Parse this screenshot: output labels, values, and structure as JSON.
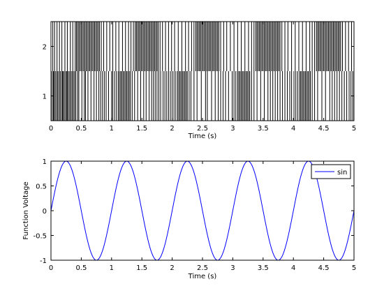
{
  "chart_data": [
    {
      "type": "raster",
      "xlabel": "Time (s)",
      "ylabel": "",
      "xlim": [
        0,
        5
      ],
      "ylim": [
        0.5,
        2.5
      ],
      "xticks": [
        "0",
        "0.5",
        "1",
        "1.5",
        "2",
        "2.5",
        "3",
        "3.5",
        "4",
        "4.5",
        "5"
      ],
      "yticks": [
        "1",
        "2"
      ],
      "rows": [
        1,
        2
      ],
      "line_color": "#000000",
      "events": {
        "1": [
          0.02,
          0.04,
          0.05,
          0.07,
          0.09,
          0.11,
          0.13,
          0.15,
          0.17,
          0.19,
          0.2,
          0.22,
          0.24,
          0.26,
          0.27,
          0.29,
          0.31,
          0.33,
          0.35,
          0.37,
          0.39,
          0.41,
          0.44,
          0.46,
          0.51,
          0.55,
          0.57,
          0.61,
          0.66,
          0.71,
          0.75,
          0.79,
          0.82,
          0.85,
          0.88,
          0.91,
          0.95,
          1.0,
          1.02,
          1.05,
          1.08,
          1.11,
          1.13,
          1.15,
          1.17,
          1.19,
          1.21,
          1.23,
          1.25,
          1.27,
          1.29,
          1.31,
          1.34,
          1.38,
          1.43,
          1.48,
          1.53,
          1.57,
          1.62,
          1.66,
          1.69,
          1.72,
          1.75,
          1.78,
          1.81,
          1.85,
          1.88,
          1.91,
          1.94,
          1.97,
          2.0,
          2.03,
          2.06,
          2.09,
          2.11,
          2.13,
          2.15,
          2.17,
          2.19,
          2.21,
          2.23,
          2.25,
          2.28,
          2.31,
          2.36,
          2.41,
          2.48,
          2.55,
          2.58,
          2.65,
          2.71,
          2.76,
          2.8,
          2.84,
          2.88,
          2.93,
          2.99,
          3.02,
          3.05,
          3.08,
          3.1,
          3.12,
          3.14,
          3.16,
          3.18,
          3.2,
          3.22,
          3.24,
          3.26,
          3.28,
          3.31,
          3.35,
          3.4,
          3.46,
          3.52,
          3.58,
          3.62,
          3.66,
          3.7,
          3.74,
          3.78,
          3.82,
          3.86,
          3.9,
          3.94,
          3.97,
          4.01,
          4.04,
          4.07,
          4.1,
          4.12,
          4.14,
          4.16,
          4.18,
          4.2,
          4.22,
          4.24,
          4.26,
          4.28,
          4.31,
          4.35,
          4.4,
          4.47,
          4.53,
          4.6,
          4.64,
          4.68,
          4.72,
          4.76,
          4.8,
          4.84,
          4.88,
          4.92,
          4.95,
          4.98
        ],
        "2": [
          0.03,
          0.06,
          0.1,
          0.14,
          0.18,
          0.23,
          0.27,
          0.32,
          0.36,
          0.4,
          0.42,
          0.44,
          0.46,
          0.48,
          0.5,
          0.52,
          0.54,
          0.56,
          0.58,
          0.6,
          0.62,
          0.64,
          0.66,
          0.68,
          0.7,
          0.72,
          0.74,
          0.76,
          0.78,
          0.8,
          0.83,
          0.87,
          0.92,
          0.97,
          1.02,
          1.07,
          1.12,
          1.18,
          1.23,
          1.28,
          1.32,
          1.36,
          1.39,
          1.41,
          1.43,
          1.45,
          1.47,
          1.49,
          1.51,
          1.53,
          1.55,
          1.57,
          1.59,
          1.61,
          1.63,
          1.65,
          1.67,
          1.69,
          1.71,
          1.73,
          1.75,
          1.77,
          1.8,
          1.84,
          1.89,
          1.94,
          1.99,
          2.04,
          2.1,
          2.16,
          2.22,
          2.27,
          2.32,
          2.36,
          2.39,
          2.41,
          2.43,
          2.45,
          2.47,
          2.49,
          2.51,
          2.53,
          2.55,
          2.57,
          2.59,
          2.61,
          2.63,
          2.65,
          2.67,
          2.69,
          2.71,
          2.73,
          2.75,
          2.77,
          2.8,
          2.85,
          2.9,
          2.96,
          3.02,
          3.08,
          3.14,
          3.2,
          3.26,
          3.31,
          3.35,
          3.38,
          3.4,
          3.42,
          3.44,
          3.46,
          3.48,
          3.5,
          3.52,
          3.54,
          3.56,
          3.58,
          3.6,
          3.62,
          3.64,
          3.66,
          3.68,
          3.7,
          3.72,
          3.74,
          3.76,
          3.78,
          3.81,
          3.86,
          3.91,
          3.97,
          4.03,
          4.09,
          4.15,
          4.21,
          4.27,
          4.31,
          4.35,
          4.38,
          4.4,
          4.42,
          4.44,
          4.46,
          4.48,
          4.5,
          4.52,
          4.54,
          4.56,
          4.58,
          4.6,
          4.62,
          4.64,
          4.66,
          4.68,
          4.7,
          4.72,
          4.74,
          4.76,
          4.78,
          4.81,
          4.86,
          4.91,
          4.96
        ]
      }
    },
    {
      "type": "line",
      "xlabel": "Time (s)",
      "ylabel": "Function Voltage",
      "xlim": [
        0,
        5
      ],
      "ylim": [
        -1,
        1
      ],
      "xticks": [
        "0",
        "0.5",
        "1",
        "1.5",
        "2",
        "2.5",
        "3",
        "3.5",
        "4",
        "4.5",
        "5"
      ],
      "yticks": [
        "1",
        "0.5",
        "0",
        "-0.5",
        "-1"
      ],
      "legend_position": "top-right",
      "series": [
        {
          "name": "sin",
          "function": "sin(2*pi*t)",
          "frequency_hz": 1,
          "amplitude": 1,
          "color": "#0000ff"
        }
      ]
    }
  ]
}
